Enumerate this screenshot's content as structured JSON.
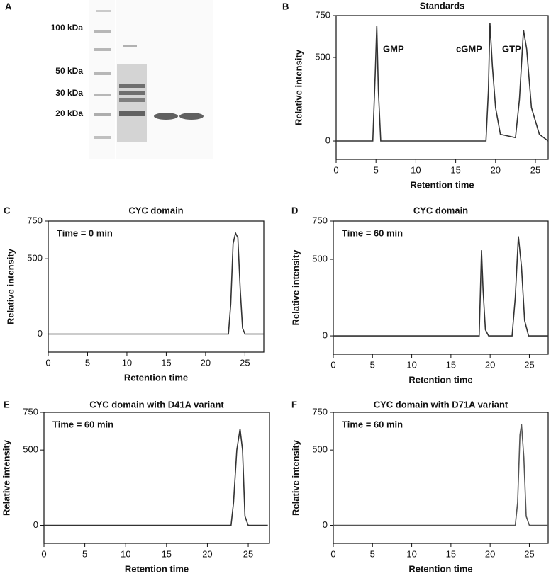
{
  "chart_data": [
    {
      "type": "gel",
      "panel": "A",
      "marker_labels": [
        "100 kDa",
        "50 kDa",
        "30 kDa",
        "20 kDa"
      ]
    },
    {
      "type": "line",
      "panel": "B",
      "title": "Standards",
      "xlabel": "Retention time",
      "ylabel": "Relative intensity",
      "annotations": [
        "GMP",
        "cGMP",
        "GTP"
      ],
      "color": "#333333",
      "x": [
        0,
        4.6,
        4.9,
        5.1,
        5.3,
        5.6,
        18.8,
        19.1,
        19.3,
        19.6,
        20.0,
        20.6,
        22.5,
        23.0,
        23.5,
        23.9,
        24.5,
        25.5,
        26.6
      ],
      "values": [
        0,
        0,
        400,
        690,
        300,
        0,
        0,
        300,
        705,
        450,
        200,
        40,
        20,
        250,
        665,
        550,
        200,
        40,
        0
      ],
      "xlim": [
        0,
        26.6
      ],
      "ylim": [
        -110,
        750
      ],
      "xticks": [
        0,
        5,
        10,
        15,
        20,
        25
      ],
      "yticks": [
        0,
        500,
        750
      ]
    },
    {
      "type": "line",
      "panel": "C",
      "title": "CYC domain",
      "annotation": "Time = 0 min",
      "xlabel": "Retention time",
      "ylabel": "Relative intensity",
      "color": "#333333",
      "x": [
        0,
        22.9,
        23.2,
        23.5,
        23.8,
        24.1,
        24.4,
        24.7,
        25.0,
        27.4
      ],
      "values": [
        0,
        0,
        200,
        600,
        670,
        640,
        300,
        40,
        0,
        0
      ],
      "xlim": [
        0,
        27.4
      ],
      "ylim": [
        -120,
        750
      ],
      "xticks": [
        0,
        5,
        10,
        15,
        20,
        25
      ],
      "yticks": [
        0,
        500,
        750
      ]
    },
    {
      "type": "line",
      "panel": "D",
      "title": "CYC domain",
      "annotation": "Time = 60 min",
      "xlabel": "Retention time",
      "ylabel": "Relative intensity",
      "color": "#333333",
      "x": [
        0,
        18.6,
        18.9,
        19.1,
        19.4,
        19.8,
        22.8,
        23.2,
        23.6,
        24.0,
        24.4,
        24.9,
        27.4
      ],
      "values": [
        0,
        0,
        560,
        300,
        40,
        0,
        0,
        250,
        650,
        450,
        100,
        0,
        0
      ],
      "xlim": [
        0,
        27.4
      ],
      "ylim": [
        -120,
        750
      ],
      "xticks": [
        0,
        5,
        10,
        15,
        20,
        25
      ],
      "yticks": [
        0,
        500,
        750
      ]
    },
    {
      "type": "line",
      "panel": "E",
      "title": "CYC domain with D41A variant",
      "annotation": "Time = 60 min",
      "xlabel": "Retention time",
      "ylabel": "Relative intensity",
      "color": "#333333",
      "x": [
        0,
        22.9,
        23.2,
        23.6,
        24.0,
        24.3,
        24.6,
        25.0,
        27.4
      ],
      "values": [
        0,
        0,
        150,
        500,
        640,
        500,
        60,
        0,
        0
      ],
      "xlim": [
        0,
        27.6
      ],
      "ylim": [
        -120,
        750
      ],
      "xticks": [
        0,
        5,
        10,
        15,
        20,
        25
      ],
      "yticks": [
        0,
        500,
        750
      ]
    },
    {
      "type": "line",
      "panel": "F",
      "title": "CYC domain with D71A variant",
      "annotation": "Time = 60 min",
      "xlabel": "Retention time",
      "ylabel": "Relative intensity",
      "color": "#555555",
      "x": [
        0,
        23.2,
        23.5,
        23.8,
        24.0,
        24.3,
        24.6,
        25.0,
        27.4
      ],
      "values": [
        0,
        0,
        150,
        600,
        670,
        450,
        60,
        0,
        0
      ],
      "xlim": [
        0,
        27.4
      ],
      "ylim": [
        -120,
        750
      ],
      "xticks": [
        0,
        5,
        10,
        15,
        20,
        25
      ],
      "yticks": [
        0,
        500,
        750
      ]
    }
  ]
}
